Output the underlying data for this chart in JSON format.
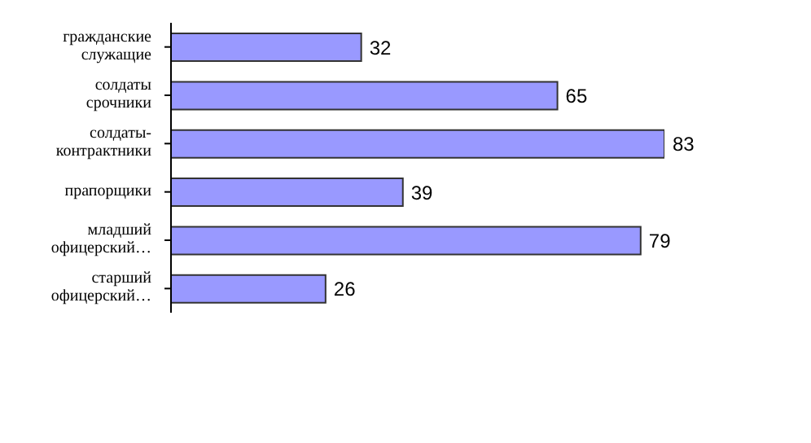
{
  "chart_data": {
    "type": "bar",
    "orientation": "horizontal",
    "categories": [
      "гражданские служащие",
      "солдаты срочники",
      "солдаты-контрактники",
      "прапорщики",
      "младший офицерский…",
      "старший офицерский…"
    ],
    "values": [
      32,
      65,
      83,
      39,
      79,
      26
    ],
    "color": "#9999ff",
    "data_labels": true
  }
}
